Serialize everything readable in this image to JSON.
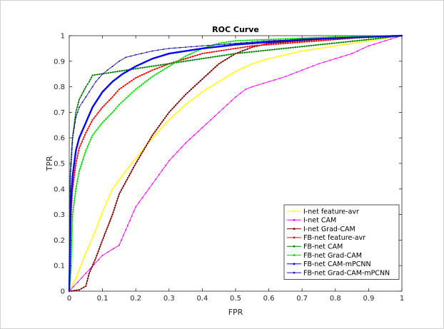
{
  "chart_data": {
    "type": "line",
    "title": "ROC Curve",
    "xlabel": "FPR",
    "ylabel": "TPR",
    "xlim": [
      0,
      1
    ],
    "ylim": [
      0,
      1
    ],
    "xticks": [
      "0",
      "0.1",
      "0.2",
      "0.3",
      "0.4",
      "0.5",
      "0.6",
      "0.7",
      "0.8",
      "0.9",
      "1"
    ],
    "yticks": [
      "0",
      "0.1",
      "0.2",
      "0.3",
      "0.4",
      "0.5",
      "0.6",
      "0.7",
      "0.8",
      "0.9",
      "1"
    ],
    "grid": false,
    "legend_position": "bottom-right",
    "series": [
      {
        "name": "I-net feature-avr",
        "color": "#ffff00",
        "marker": "dot",
        "x": [
          0,
          0.02,
          0.05,
          0.08,
          0.1,
          0.13,
          0.17,
          0.2,
          0.25,
          0.3,
          0.35,
          0.4,
          0.45,
          0.5,
          0.55,
          0.6,
          0.65,
          0.7,
          0.8,
          0.9,
          0.95,
          1
        ],
        "y": [
          0,
          0.05,
          0.15,
          0.24,
          0.31,
          0.4,
          0.47,
          0.52,
          0.6,
          0.67,
          0.73,
          0.78,
          0.82,
          0.86,
          0.89,
          0.91,
          0.925,
          0.94,
          0.96,
          0.98,
          0.99,
          1
        ]
      },
      {
        "name": "I-net CAM",
        "color": "#ff00ff",
        "marker": "point",
        "x": [
          0,
          0.05,
          0.1,
          0.15,
          0.17,
          0.2,
          0.25,
          0.3,
          0.35,
          0.4,
          0.45,
          0.5,
          0.53,
          0.55,
          0.6,
          0.65,
          0.7,
          0.75,
          0.8,
          0.85,
          0.9,
          0.95,
          1
        ],
        "y": [
          0,
          0.07,
          0.14,
          0.18,
          0.24,
          0.33,
          0.42,
          0.51,
          0.58,
          0.64,
          0.7,
          0.76,
          0.79,
          0.8,
          0.82,
          0.84,
          0.865,
          0.89,
          0.91,
          0.93,
          0.96,
          0.98,
          1
        ]
      },
      {
        "name": "I-net Grad-CAM",
        "color": "#800000",
        "marker": "dot",
        "x": [
          0,
          0.03,
          0.05,
          0.06,
          0.08,
          0.1,
          0.13,
          0.15,
          0.2,
          0.25,
          0.3,
          0.35,
          0.4,
          0.45,
          0.5,
          0.55,
          0.6,
          0.65,
          0.7,
          0.8,
          0.9,
          1
        ],
        "y": [
          0,
          0.005,
          0.02,
          0.07,
          0.13,
          0.2,
          0.3,
          0.38,
          0.5,
          0.61,
          0.7,
          0.77,
          0.83,
          0.89,
          0.93,
          0.955,
          0.97,
          0.975,
          0.98,
          0.99,
          0.995,
          1
        ]
      },
      {
        "name": "FB-net feature-avr",
        "color": "#ff0000",
        "marker": "dot",
        "x": [
          0,
          0.005,
          0.01,
          0.02,
          0.03,
          0.05,
          0.07,
          0.1,
          0.13,
          0.15,
          0.2,
          0.25,
          0.3,
          0.35,
          0.4,
          0.45,
          0.5,
          0.55,
          0.6,
          0.7,
          0.8,
          0.9,
          1
        ],
        "y": [
          0,
          0.3,
          0.4,
          0.5,
          0.56,
          0.62,
          0.67,
          0.72,
          0.76,
          0.79,
          0.835,
          0.865,
          0.89,
          0.91,
          0.93,
          0.94,
          0.95,
          0.96,
          0.965,
          0.975,
          0.985,
          0.995,
          1
        ]
      },
      {
        "name": "FB-net CAM",
        "color": "#008000",
        "marker": "dot",
        "x": [
          0,
          0.003,
          0.01,
          0.02,
          0.03,
          0.05,
          0.06,
          0.07,
          0.5,
          0.9,
          1
        ],
        "y": [
          0,
          0.45,
          0.6,
          0.7,
          0.75,
          0.8,
          0.82,
          0.845,
          0.93,
          0.985,
          1
        ]
      },
      {
        "name": "FB-net Grad-CAM",
        "color": "#00e000",
        "marker": "dot",
        "x": [
          0,
          0.005,
          0.01,
          0.02,
          0.03,
          0.05,
          0.07,
          0.1,
          0.13,
          0.15,
          0.2,
          0.25,
          0.3,
          0.35,
          0.4,
          0.45,
          0.5,
          0.6,
          0.7,
          0.8,
          0.9,
          1
        ],
        "y": [
          0,
          0.08,
          0.3,
          0.4,
          0.47,
          0.55,
          0.61,
          0.66,
          0.7,
          0.73,
          0.79,
          0.84,
          0.88,
          0.92,
          0.95,
          0.97,
          0.98,
          0.985,
          0.99,
          0.995,
          0.998,
          1
        ]
      },
      {
        "name": "FB-net CAM-mPCNN",
        "color": "#0000ff",
        "marker": "point",
        "x": [
          0,
          0.005,
          0.01,
          0.02,
          0.03,
          0.05,
          0.07,
          0.1,
          0.13,
          0.16,
          0.2,
          0.25,
          0.3,
          0.4,
          0.5,
          0.6,
          0.7,
          0.8,
          0.9,
          1
        ],
        "y": [
          0,
          0.35,
          0.45,
          0.55,
          0.6,
          0.66,
          0.72,
          0.78,
          0.82,
          0.85,
          0.88,
          0.91,
          0.93,
          0.95,
          0.965,
          0.975,
          0.985,
          0.99,
          0.995,
          1
        ]
      },
      {
        "name": "FB-net Grad-CAM-mPCNN",
        "color": "#1a1aa0",
        "marker": "point",
        "x": [
          0,
          0.003,
          0.01,
          0.02,
          0.03,
          0.05,
          0.08,
          0.1,
          0.13,
          0.15,
          0.17,
          0.2,
          0.25,
          0.3,
          0.4,
          0.5,
          0.6,
          0.7,
          0.8,
          0.9,
          1
        ],
        "y": [
          0,
          0.45,
          0.6,
          0.68,
          0.72,
          0.76,
          0.82,
          0.85,
          0.88,
          0.9,
          0.915,
          0.925,
          0.94,
          0.95,
          0.96,
          0.97,
          0.98,
          0.985,
          0.99,
          0.995,
          1
        ]
      }
    ]
  }
}
